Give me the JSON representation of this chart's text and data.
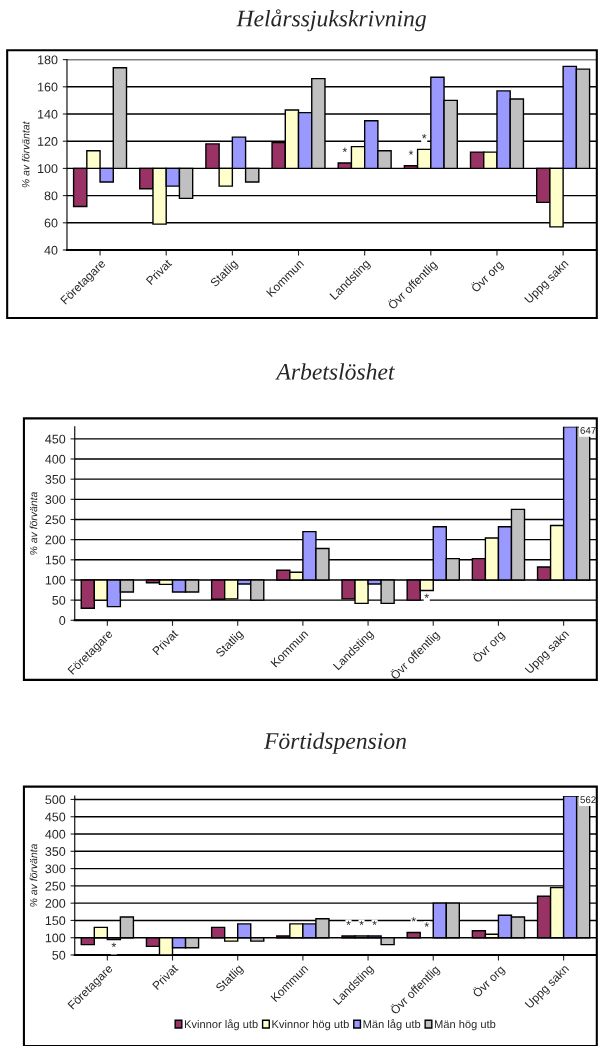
{
  "chart_data": [
    {
      "type": "bar",
      "title": "Helårssjukskrivning",
      "ylabel": "% av förväntat",
      "categories": [
        "Företagare",
        "Privat",
        "Statlig",
        "Kommun",
        "Landsting",
        "Övr offentlig",
        "Övr org",
        "Uppg sakn"
      ],
      "ylim": [
        40,
        180
      ],
      "yticks": [
        40,
        60,
        80,
        100,
        120,
        140,
        160,
        180
      ],
      "grid": "y",
      "series": [
        {
          "color": "#993366",
          "base": [
            100,
            100,
            100,
            100,
            100,
            100,
            100,
            100
          ],
          "values": [
            -28,
            -15,
            18,
            19,
            4,
            2,
            12,
            -25
          ],
          "value_labels": [
            null,
            null,
            null,
            null,
            "*",
            "*",
            null,
            null
          ]
        },
        {
          "color": "#ffffcc",
          "base": [
            100,
            100,
            100,
            100,
            100,
            100,
            100,
            100
          ],
          "values": [
            13,
            -41,
            -13,
            43,
            16,
            14,
            12,
            -43
          ],
          "value_labels": [
            null,
            null,
            null,
            null,
            null,
            "*",
            null,
            null
          ]
        },
        {
          "color": "#9999ff",
          "base": [
            100,
            100,
            100,
            100,
            100,
            100,
            100,
            100
          ],
          "values": [
            -10,
            -13,
            23,
            41,
            35,
            67,
            57,
            75
          ]
        },
        {
          "color": "#c0c0c0",
          "base": [
            100,
            100,
            100,
            100,
            100,
            100,
            100,
            100
          ],
          "values": [
            74,
            -22,
            -10,
            66,
            13,
            50,
            51,
            73
          ]
        }
      ]
    },
    {
      "type": "bar",
      "title": "Arbetslöshet",
      "ylabel": "% av förvänta",
      "categories": [
        "Företagare",
        "Privat",
        "Statlig",
        "Kommun",
        "Landsting",
        "Övr offentlig",
        "Övr org",
        "Uppg sakn"
      ],
      "ylim": [
        0,
        480
      ],
      "yticks": [
        0,
        50,
        100,
        150,
        200,
        250,
        300,
        350,
        400,
        450
      ],
      "grid": "y",
      "annotations": [
        "647"
      ],
      "series": [
        {
          "color": "#993366",
          "base": [
            100,
            100,
            100,
            100,
            100,
            100,
            100,
            100
          ],
          "values": [
            -70,
            -7,
            -48,
            24,
            -47,
            -50,
            53,
            32
          ]
        },
        {
          "color": "#ffffcc",
          "base": [
            100,
            100,
            100,
            100,
            100,
            100,
            100,
            100
          ],
          "values": [
            -50,
            -11,
            -47,
            19,
            -58,
            -26,
            104,
            135
          ],
          "value_labels": [
            null,
            null,
            null,
            null,
            null,
            "*",
            null,
            null
          ]
        },
        {
          "color": "#9999ff",
          "base": [
            100,
            100,
            100,
            100,
            100,
            100,
            100,
            100
          ],
          "values": [
            -66,
            -30,
            -10,
            120,
            -10,
            132,
            132,
            380
          ]
        },
        {
          "color": "#c0c0c0",
          "base": [
            100,
            100,
            100,
            100,
            100,
            100,
            100,
            100
          ],
          "values": [
            -30,
            -30,
            -50,
            78,
            -58,
            53,
            175,
            380
          ]
        }
      ]
    },
    {
      "type": "bar",
      "title": "Förtidspension",
      "ylabel": "% av förvänta",
      "categories": [
        "Företagare",
        "Privat",
        "Statlig",
        "Kommun",
        "Landsting",
        "Övr offentlig",
        "Övr org",
        "Uppg sakn"
      ],
      "ylim": [
        50,
        510
      ],
      "yticks": [
        50,
        100,
        150,
        200,
        250,
        300,
        350,
        400,
        450,
        500
      ],
      "grid": "y",
      "legend": "bottom",
      "annotations": [
        "562"
      ],
      "series": [
        {
          "name": "Kvinnor låg utb",
          "color": "#993366",
          "base": [
            100,
            100,
            100,
            100,
            100,
            100,
            100,
            100
          ],
          "values": [
            -20,
            -25,
            30,
            5,
            5,
            15,
            20,
            120
          ],
          "value_labels": [
            null,
            null,
            null,
            null,
            "*",
            "*",
            null,
            null
          ]
        },
        {
          "name": "Kvinnor hög utb",
          "color": "#ffffcc",
          "base": [
            100,
            100,
            100,
            100,
            100,
            null,
            100,
            100
          ],
          "values": [
            30,
            -50,
            -10,
            40,
            5,
            null,
            10,
            145
          ],
          "value_labels": [
            null,
            null,
            null,
            null,
            "*",
            "*",
            null,
            null
          ]
        },
        {
          "name": "Män låg utb",
          "color": "#9999ff",
          "base": [
            100,
            100,
            100,
            100,
            100,
            100,
            100,
            100
          ],
          "values": [
            -5,
            -29,
            40,
            40,
            5,
            100,
            65,
            410
          ],
          "value_labels": [
            "*",
            null,
            null,
            null,
            "*",
            null,
            null,
            null
          ]
        },
        {
          "name": "Män hög utb",
          "color": "#c0c0c0",
          "base": [
            100,
            100,
            100,
            100,
            100,
            100,
            100,
            100
          ],
          "values": [
            60,
            -29,
            -10,
            55,
            -20,
            100,
            60,
            410
          ]
        }
      ]
    }
  ]
}
